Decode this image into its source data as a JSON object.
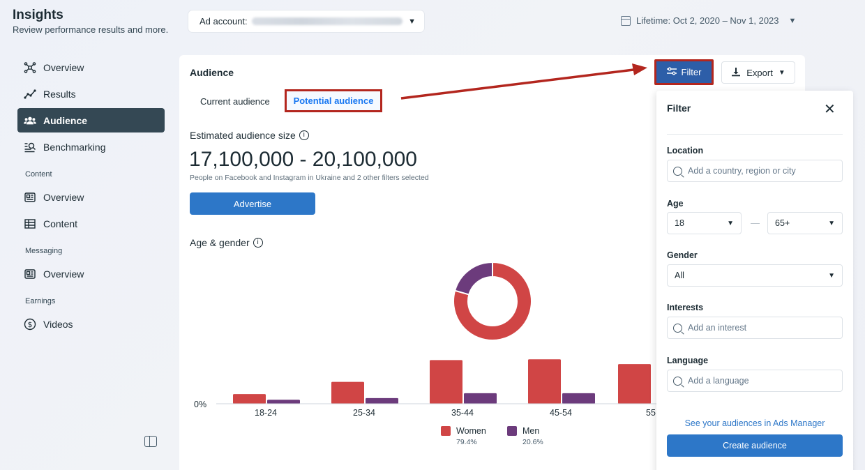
{
  "header": {
    "title": "Insights",
    "subtitle": "Review performance results and more.",
    "ad_account_label": "Ad account:",
    "date_range": "Lifetime: Oct 2, 2020 – Nov 1, 2023"
  },
  "sidebar": {
    "items": [
      {
        "label": "Overview"
      },
      {
        "label": "Results"
      },
      {
        "label": "Audience"
      },
      {
        "label": "Benchmarking"
      }
    ],
    "sections": {
      "content": {
        "label": "Content",
        "items": [
          {
            "label": "Overview"
          },
          {
            "label": "Content"
          }
        ]
      },
      "messaging": {
        "label": "Messaging",
        "items": [
          {
            "label": "Overview"
          }
        ]
      },
      "earnings": {
        "label": "Earnings",
        "items": [
          {
            "label": "Videos"
          }
        ]
      }
    }
  },
  "main": {
    "title": "Audience",
    "tabs": [
      {
        "label": "Current audience"
      },
      {
        "label": "Potential audience",
        "active": true
      }
    ],
    "estimated_label": "Estimated audience size",
    "estimated_size": "17,100,000 - 20,100,000",
    "estimated_note": "People on Facebook and Instagram in Ukraine and 2 other filters selected",
    "advertise_label": "Advertise",
    "age_gender_label": "Age & gender",
    "filter_label": "Filter",
    "export_label": "Export"
  },
  "chart_data": [
    {
      "type": "pie",
      "labels": [
        "Women",
        "Men"
      ],
      "values": [
        79.4,
        20.6
      ],
      "colors": [
        "#d04545",
        "#6c3b7c"
      ]
    },
    {
      "type": "bar",
      "categories": [
        "18-24",
        "25-34",
        "35-44",
        "45-54",
        "55"
      ],
      "series": [
        {
          "name": "Women",
          "values": [
            1.2,
            2.7,
            5.4,
            5.5,
            4.9
          ],
          "color": "#d04545"
        },
        {
          "name": "Men",
          "values": [
            0.5,
            0.7,
            1.3,
            1.3,
            null
          ],
          "color": "#6c3b7c"
        }
      ],
      "yaxis_label": "0%",
      "legend": [
        {
          "name": "Women",
          "pct": "79.4%"
        },
        {
          "name": "Men",
          "pct": "20.6%"
        }
      ]
    }
  ],
  "filter_panel": {
    "title": "Filter",
    "location_label": "Location",
    "location_placeholder": "Add a country, region or city",
    "age_label": "Age",
    "age_from": "18",
    "age_to": "65+",
    "gender_label": "Gender",
    "gender_value": "All",
    "interests_label": "Interests",
    "interests_placeholder": "Add an interest",
    "language_label": "Language",
    "language_placeholder": "Add a language",
    "link_label": "See your audiences in Ads Manager",
    "create_label": "Create audience"
  }
}
